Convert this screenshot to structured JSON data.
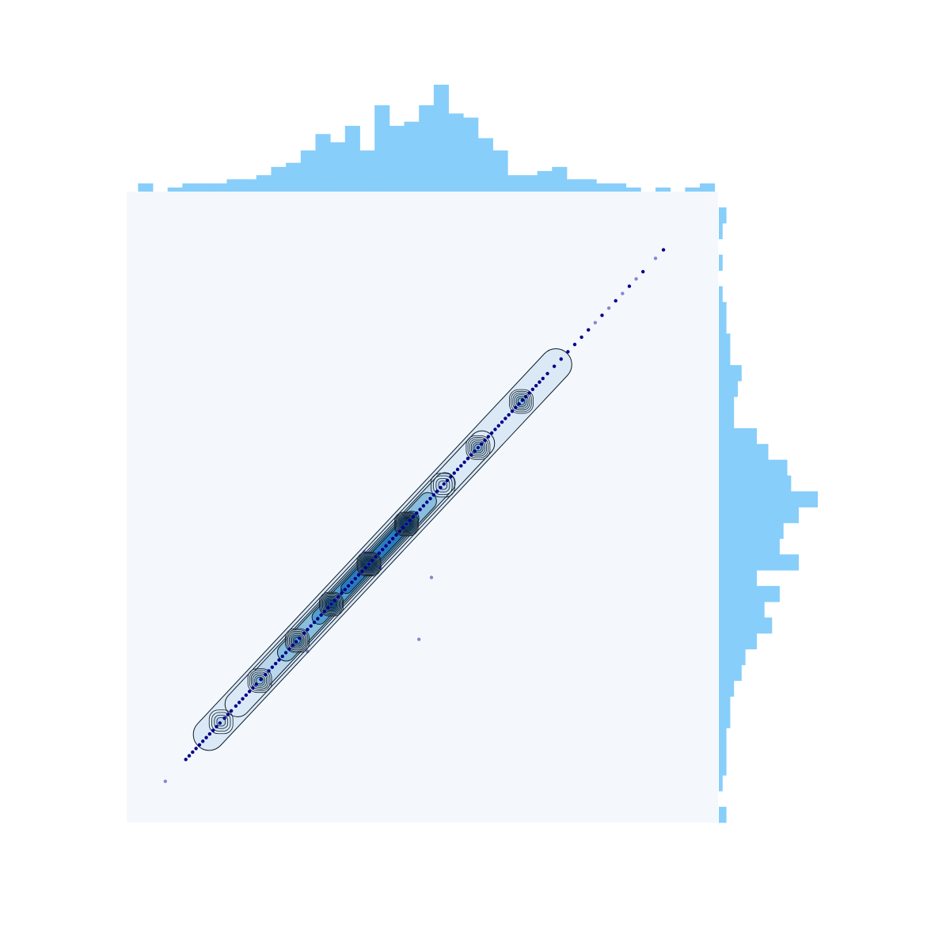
{
  "chart_data": {
    "type": "scatter",
    "title": "",
    "xlabel": "",
    "ylabel": "",
    "xlim": [
      -2.1,
      3.1
    ],
    "ylim": [
      -2.1,
      3.1
    ],
    "grid": false,
    "axes_visible": false,
    "legend": "none",
    "colors": {
      "plot_background": "#f4f8fd",
      "histogram": "#87cefa",
      "points": "#00008b",
      "contour_line": "#0d1b2a",
      "density_fill": [
        "#dbe9f6",
        "#bad6eb",
        "#89bedc",
        "#539ecd",
        "#2b7bba"
      ]
    },
    "series": [
      {
        "kind": "points-on-line",
        "x": [
          -1.76,
          -1.58,
          -1.55,
          -1.52,
          -1.49,
          -1.46,
          -1.43,
          -1.4,
          -1.37,
          -1.34,
          -1.31,
          -1.28,
          -1.24,
          -1.21,
          -1.18,
          -1.14,
          -1.11,
          -1.08,
          -1.05,
          -1.02,
          -0.99,
          -0.96,
          -0.92,
          -0.88,
          -0.85,
          -0.82,
          -0.79,
          -0.76,
          -0.73,
          -0.7,
          -0.67,
          -0.64,
          -0.61,
          -0.58,
          -0.54,
          -0.51,
          -0.48,
          -0.45,
          -0.42,
          -0.39,
          -0.36,
          -0.33,
          -0.3,
          -0.27,
          -0.24,
          -0.21,
          -0.18,
          -0.15,
          -0.12,
          -0.09,
          -0.06,
          -0.03,
          0.0,
          0.03,
          0.06,
          0.09,
          0.12,
          0.15,
          0.18,
          0.21,
          0.24,
          0.27,
          0.3,
          0.33,
          0.36,
          0.39,
          0.42,
          0.45,
          0.48,
          0.51,
          0.54,
          0.57,
          0.6,
          0.63,
          0.66,
          0.69,
          0.72,
          0.75,
          0.78,
          0.81,
          0.84,
          0.87,
          0.9,
          0.93,
          0.96,
          0.99,
          1.02,
          1.05,
          1.08,
          1.11,
          1.14,
          1.17,
          1.2,
          1.23,
          1.26,
          1.29,
          1.32,
          1.35,
          1.38,
          1.41,
          1.44,
          1.47,
          1.5,
          1.53,
          1.56,
          1.6,
          1.66,
          1.72,
          1.78,
          1.84,
          1.9,
          1.96,
          2.02,
          2.08,
          2.14,
          2.2,
          2.26,
          2.32,
          2.38,
          2.44,
          2.55,
          2.62
        ],
        "y": [
          -1.76,
          -1.58,
          -1.55,
          -1.52,
          -1.49,
          -1.46,
          -1.43,
          -1.4,
          -1.37,
          -1.34,
          -1.31,
          -1.28,
          -1.24,
          -1.21,
          -1.18,
          -1.14,
          -1.11,
          -1.08,
          -1.05,
          -1.02,
          -0.99,
          -0.96,
          -0.92,
          -0.88,
          -0.85,
          -0.82,
          -0.79,
          -0.76,
          -0.73,
          -0.7,
          -0.67,
          -0.64,
          -0.61,
          -0.58,
          -0.54,
          -0.51,
          -0.48,
          -0.45,
          -0.42,
          -0.39,
          -0.36,
          -0.33,
          -0.3,
          -0.27,
          -0.24,
          -0.21,
          -0.18,
          -0.15,
          -0.12,
          -0.09,
          -0.06,
          -0.03,
          0.0,
          0.03,
          0.06,
          0.09,
          0.12,
          0.15,
          0.18,
          0.21,
          0.24,
          0.27,
          0.3,
          0.33,
          0.36,
          0.39,
          0.42,
          0.45,
          0.48,
          0.51,
          0.54,
          0.57,
          0.6,
          0.63,
          0.66,
          0.69,
          0.72,
          0.75,
          0.78,
          0.81,
          0.84,
          0.87,
          0.9,
          0.93,
          0.96,
          0.99,
          1.02,
          1.05,
          1.08,
          1.11,
          1.14,
          1.17,
          1.2,
          1.23,
          1.26,
          1.29,
          1.32,
          1.35,
          1.38,
          1.41,
          1.44,
          1.47,
          1.5,
          1.53,
          1.56,
          1.6,
          1.66,
          1.72,
          1.78,
          1.84,
          1.9,
          1.96,
          2.02,
          2.08,
          2.14,
          2.2,
          2.26,
          2.32,
          2.38,
          2.44,
          2.55,
          2.62
        ]
      },
      {
        "kind": "outliers",
        "x": [
          -0.51,
          -0.21,
          -0.01,
          0.13,
          0.58,
          0.47
        ],
        "y": [
          -0.69,
          -0.19,
          0.13,
          0.0,
          -0.08,
          -0.59
        ]
      }
    ],
    "density_peaks": [
      {
        "x": -1.27,
        "y": -1.27,
        "level": 1
      },
      {
        "x": -0.93,
        "y": -0.93,
        "level": 2
      },
      {
        "x": -0.6,
        "y": -0.6,
        "level": 3
      },
      {
        "x": -0.3,
        "y": -0.3,
        "level": 4
      },
      {
        "x": 0.03,
        "y": 0.03,
        "level": 5
      },
      {
        "x": 0.36,
        "y": 0.36,
        "level": 5
      },
      {
        "x": 0.68,
        "y": 0.68,
        "level": 1
      },
      {
        "x": 0.99,
        "y": 0.99,
        "level": 2
      },
      {
        "x": 1.37,
        "y": 1.37,
        "level": 2
      }
    ],
    "marginal_x": {
      "bin_start": -2.0,
      "bin_width": 0.13,
      "counts": [
        1,
        0,
        0.5,
        1,
        1,
        1,
        1.5,
        1.5,
        2,
        3,
        3.5,
        5,
        7,
        6,
        8,
        5,
        10.5,
        8,
        8.5,
        10.5,
        13,
        9.5,
        9,
        6.5,
        5,
        2,
        2,
        2.5,
        3,
        1.5,
        1.5,
        1,
        1,
        0.5,
        0,
        0.5,
        0,
        0.5,
        1
      ]
    },
    "marginal_y": {
      "bin_start": -2.1,
      "bin_width": 0.13,
      "counts": [
        1,
        0,
        0.5,
        1,
        1,
        1,
        1.5,
        1.5,
        2,
        3,
        3.5,
        5,
        7,
        6,
        8,
        5,
        10.5,
        8,
        8.5,
        10.5,
        13,
        9.5,
        9,
        6.5,
        5,
        2,
        2,
        2.5,
        3,
        1.5,
        1.5,
        1,
        1,
        0.5,
        0,
        0.5,
        0,
        0.5,
        1
      ]
    }
  }
}
